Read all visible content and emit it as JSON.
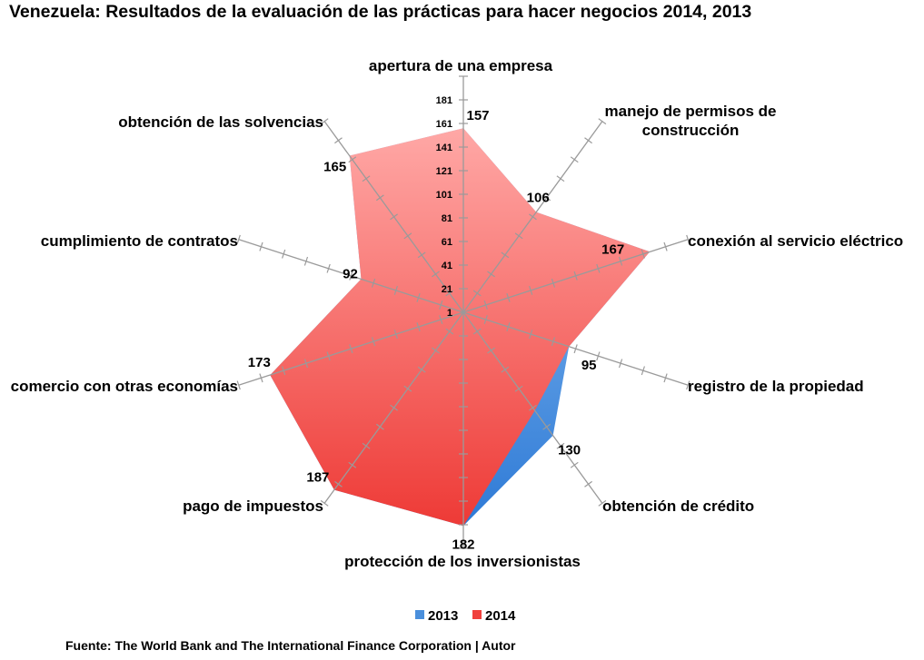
{
  "chart_data": {
    "type": "radar",
    "title": "Venezuela: Resultados de la evaluación de las prácticas para hacer negocios 2014, 2013",
    "source": "Fuente:  The World Bank and The International Finance Corporation | Autor",
    "categories": [
      "apertura de una empresa",
      "manejo de permisos de|construcción",
      "conexión al servicio eléctrico",
      "registro de la propiedad",
      "obtención de crédito",
      "protección de los inversionistas",
      "pago de impuestos",
      "comercio con otras economías",
      "cumplimiento de contratos",
      "obtención de las solvencias"
    ],
    "series": [
      {
        "name": "2013",
        "values": [
          157,
          106,
          167,
          95,
          130,
          182,
          187,
          173,
          92,
          165
        ],
        "color": "#4a8fdc"
      },
      {
        "name": "2014",
        "values": [
          157,
          106,
          167,
          95,
          104,
          182,
          187,
          173,
          92,
          165
        ],
        "color": "#f0403c"
      }
    ],
    "value_labels": [
      "157",
      "106",
      "167",
      "95",
      "130",
      "182",
      "187",
      "173",
      "92",
      "165"
    ],
    "ticks": [
      "1",
      "21",
      "41",
      "61",
      "81",
      "101",
      "121",
      "141",
      "161",
      "181"
    ],
    "rlim": [
      1,
      201
    ],
    "legend": {
      "position": "bottom",
      "items": [
        "2013",
        "2014"
      ]
    }
  }
}
